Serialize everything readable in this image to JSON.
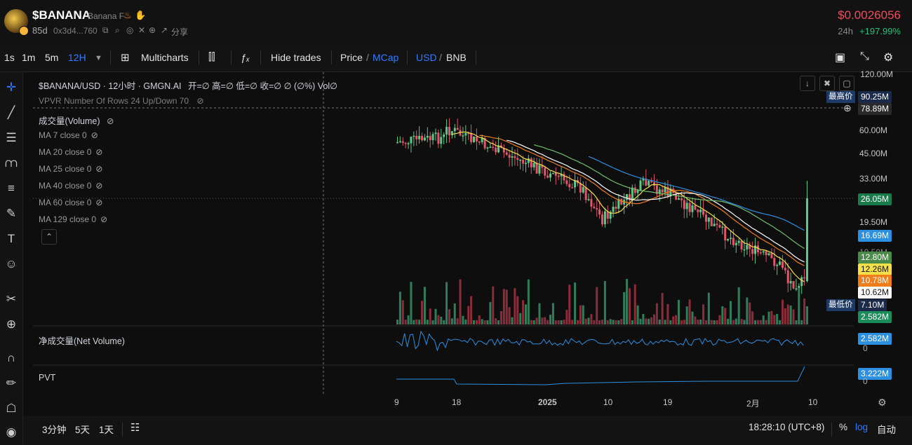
{
  "header": {
    "token_name": "$BANANA",
    "token_full": "Banana F",
    "age": "85d",
    "address": "0x3d4...760",
    "share": "分享",
    "price": "$0.0026056",
    "change_label": "24h",
    "change_value": "+197.99%",
    "colors": {
      "price": "#f04a5b",
      "change": "#1fc37a"
    }
  },
  "toolbar": {
    "intervals": [
      "1s",
      "1m",
      "5m",
      "12H"
    ],
    "active_interval": "12H",
    "multicharts": "Multicharts",
    "hide_trades": "Hide trades",
    "price": "Price",
    "mcap": "MCap",
    "usd": "USD",
    "bnb": "BNB",
    "slash": "/"
  },
  "chart": {
    "symbol_line": "$BANANA/USD · 12小时 · GMGN.AI",
    "ohlc": "开=∅  高=∅  低=∅  收=∅  ∅ (∅%)  Vol∅",
    "vpvr": "VPVR Number Of Rows 24 Up/Down 70",
    "volume_title": "成交量(Volume)",
    "ma_rows": [
      {
        "label": "MA 7 close 0"
      },
      {
        "label": "MA 20 close 0"
      },
      {
        "label": "MA 25 close 0"
      },
      {
        "label": "MA 40 close 0"
      },
      {
        "label": "MA 60 close 0"
      },
      {
        "label": "MA 129 close 0"
      }
    ],
    "net_volume_title": "净成交量(Net Volume)",
    "pvt_title": "PVT",
    "y_axis": [
      "120.00M",
      "60.00M",
      "45.00M",
      "33.00M",
      "19.50M",
      "10.50M"
    ],
    "tags": {
      "high_label": "最高价",
      "high_value": "90.25M",
      "crosshair": "78.89M",
      "current": "26.05M",
      "ma_a": "16.69M",
      "ma_b": "12.80M",
      "ma_c": "12.26M",
      "ma_d": "10.78M",
      "ma_e": "10.62M",
      "low_label": "最低价",
      "low_value": "7.10M",
      "volume": "2.582M",
      "net_volume": "2.582M",
      "net_zero": "0",
      "pvt": "3.222M",
      "pvt_zero": "0"
    },
    "tag_colors": {
      "ma_a": "#2c8fe0",
      "ma_b": "#6fbf6a",
      "ma_c": "#f5e04a",
      "ma_d": "#ef7d1a",
      "ma_e": "#ffffff",
      "volume": "#1c8c5a",
      "current": "#1fc37a"
    },
    "x_axis": [
      "9",
      "18",
      "2025",
      "10",
      "19",
      "2月",
      "10"
    ]
  },
  "bottom": {
    "ranges": [
      "3分钟",
      "5天",
      "1天"
    ],
    "time": "18:28:10 (UTC+8)",
    "percent": "%",
    "log": "log",
    "auto": "自动"
  }
}
